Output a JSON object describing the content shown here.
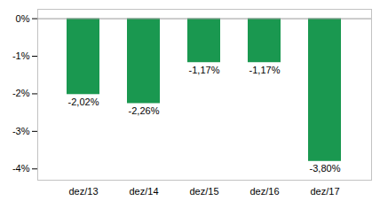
{
  "chart_data": {
    "type": "bar",
    "categories": [
      "dez/13",
      "dez/14",
      "dez/15",
      "dez/16",
      "dez/17"
    ],
    "values": [
      -2.02,
      -2.26,
      -1.17,
      -1.17,
      -3.8
    ],
    "value_labels": [
      "-2,02%",
      "-2,26%",
      "-1,17%",
      "-1,17%",
      "-3,80%"
    ],
    "data_labels": true,
    "color": "#1a9850",
    "ylim": [
      -4.3,
      0.25
    ],
    "yticks": [
      {
        "value": 0,
        "label": "0%"
      },
      {
        "value": -1,
        "label": "-1%"
      },
      {
        "value": -2,
        "label": "-2%"
      },
      {
        "value": -3,
        "label": "-3%"
      },
      {
        "value": -4,
        "label": "-4%"
      }
    ]
  }
}
